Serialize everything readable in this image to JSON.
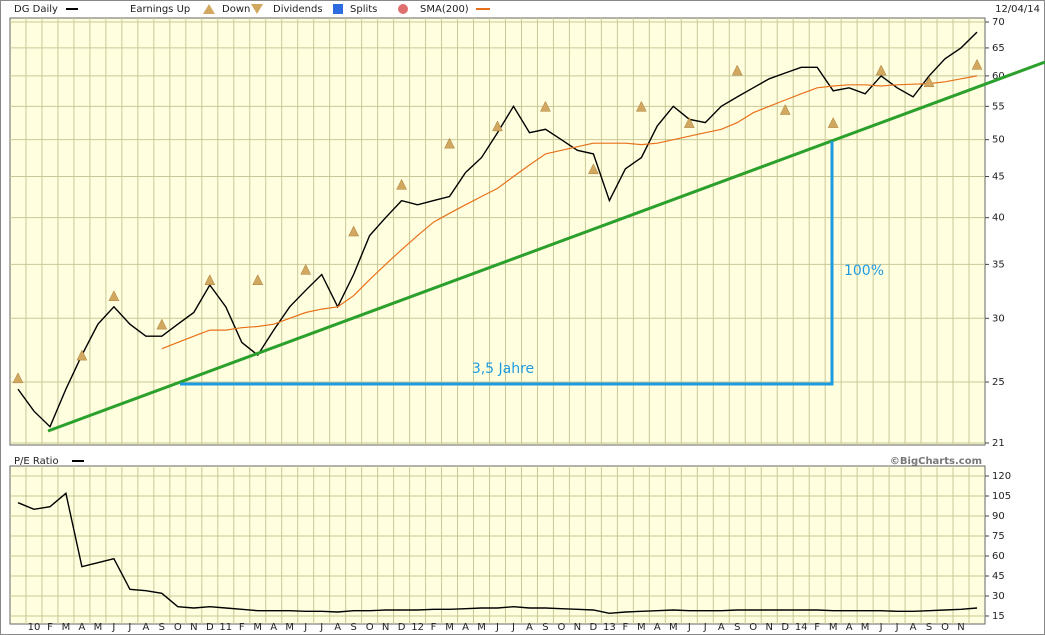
{
  "chart_data": [
    {
      "type": "line",
      "log_scale": true,
      "grid": true,
      "ylim": [
        21,
        70
      ],
      "yticks": [
        21,
        25,
        30,
        35,
        40,
        45,
        50,
        55,
        60,
        65,
        70
      ],
      "date": "12/04/14",
      "event_legend": [
        "Earnings Up",
        "Down",
        "Dividends",
        "Splits"
      ],
      "annotations": [
        "100%",
        "3,5 Jahre"
      ],
      "series": [
        {
          "name": "DG Daily",
          "color": "#000000",
          "values": [
            24.5,
            23,
            22,
            24.5,
            27,
            29.5,
            31,
            29.5,
            28.5,
            28.5,
            29.5,
            30.5,
            33,
            31,
            28,
            27,
            29,
            31,
            32.5,
            34,
            31,
            34,
            38,
            40,
            42,
            41.5,
            42,
            42.5,
            45.5,
            47.5,
            51,
            55,
            51,
            51.5,
            50,
            48.5,
            48,
            42,
            46,
            47.5,
            52,
            55,
            53,
            52.5,
            55,
            56.5,
            58,
            59.5,
            60.5,
            61.5,
            61.5,
            57.5,
            58,
            57,
            60,
            58,
            56.5,
            60,
            63,
            65,
            68
          ]
        },
        {
          "name": "SMA(200)",
          "color": "#e8701a",
          "values": [
            null,
            null,
            null,
            null,
            null,
            null,
            null,
            null,
            null,
            27.5,
            28,
            28.5,
            29,
            29,
            29.2,
            29.3,
            29.5,
            30,
            30.5,
            30.8,
            31,
            32,
            33.5,
            35,
            36.5,
            38,
            39.5,
            40.5,
            41.5,
            42.5,
            43.5,
            45,
            46.5,
            48,
            48.5,
            49,
            49.5,
            49.5,
            49.5,
            49.3,
            49.5,
            50,
            50.5,
            51,
            51.5,
            52.5,
            54,
            55,
            56,
            57,
            58,
            58.3,
            58.5,
            58.5,
            58.3,
            58.5,
            58.6,
            58.7,
            59,
            59.5,
            60
          ]
        }
      ],
      "earnings": {
        "color": "#d2a861",
        "values": [
          25.3,
          null,
          null,
          null,
          27,
          null,
          32,
          null,
          null,
          29.5,
          null,
          null,
          33.5,
          null,
          null,
          33.5,
          null,
          null,
          34.5,
          null,
          null,
          38.5,
          null,
          null,
          44,
          null,
          null,
          49.5,
          null,
          null,
          52,
          null,
          null,
          55,
          null,
          null,
          46,
          null,
          null,
          55,
          null,
          null,
          52.5,
          null,
          null,
          61,
          null,
          null,
          54.5,
          null,
          null,
          52.5,
          null,
          null,
          61,
          null,
          null,
          59,
          null,
          null,
          62
        ]
      }
    },
    {
      "type": "line",
      "grid": true,
      "source": "©BigCharts.com",
      "ylim": [
        9,
        127.5
      ],
      "yticks": [
        15,
        30,
        45,
        60,
        75,
        90,
        105,
        120
      ],
      "categories": [
        null,
        "10",
        "F",
        "M",
        "A",
        "M",
        "J",
        "J",
        "A",
        "S",
        "O",
        "N",
        "D",
        "11",
        "F",
        "M",
        "A",
        "M",
        "J",
        "J",
        "A",
        "S",
        "O",
        "N",
        "D",
        "12",
        "F",
        "M",
        "A",
        "M",
        "J",
        "J",
        "A",
        "S",
        "O",
        "N",
        "D",
        "13",
        "F",
        "M",
        "A",
        "M",
        "J",
        "J",
        "A",
        "S",
        "O",
        "N",
        "D",
        "14",
        "F",
        "M",
        "A",
        "M",
        "J",
        "J",
        "A",
        "S",
        "O",
        "N",
        null
      ],
      "series": [
        {
          "name": "P/E Ratio",
          "color": "#000000",
          "values": [
            100,
            95,
            97,
            107,
            52,
            55,
            58,
            35,
            34,
            32,
            22,
            21,
            22,
            21,
            20,
            19,
            19,
            19,
            18.5,
            18.5,
            18,
            19,
            19,
            19.5,
            19.5,
            19.5,
            20,
            20,
            20.5,
            21,
            21,
            22,
            21,
            21,
            20.5,
            20,
            19.5,
            17,
            18,
            18.5,
            19,
            19.5,
            19,
            19,
            19,
            19.5,
            19.5,
            19.5,
            19.5,
            19.5,
            19.5,
            19,
            19,
            19,
            19,
            18.5,
            18.5,
            19,
            19.5,
            20,
            21
          ]
        }
      ]
    }
  ]
}
